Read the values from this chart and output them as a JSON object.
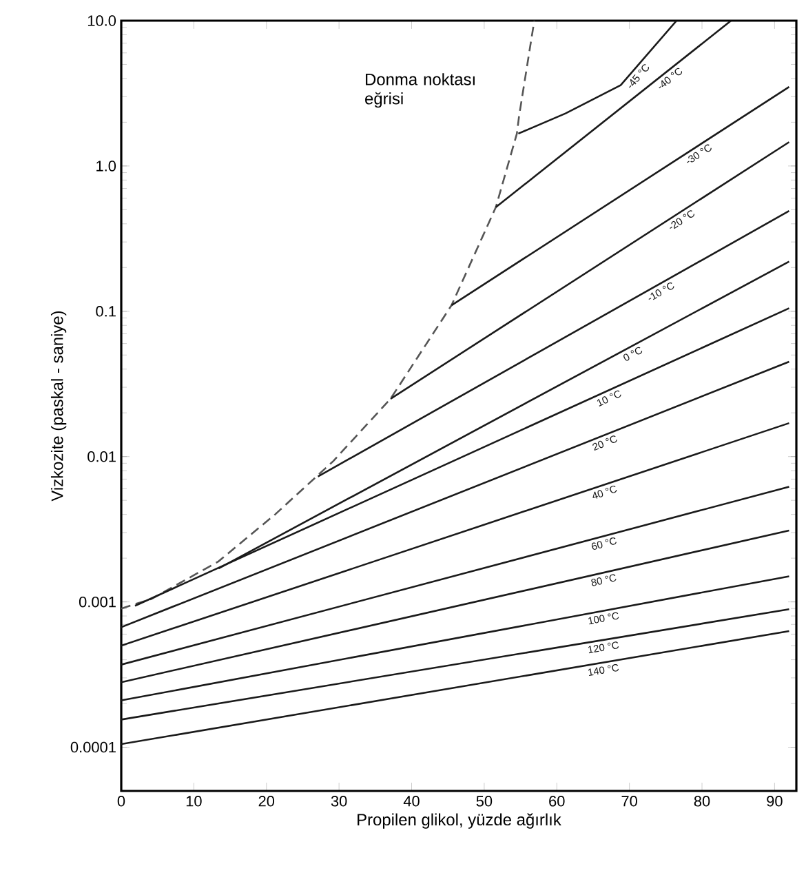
{
  "chart_data": {
    "type": "line",
    "xlabel": "Propilen glikol, yüzde ağırlık",
    "ylabel": "Vizkozite (paskal - saniye)",
    "xlim": [
      0,
      93
    ],
    "xticks": [
      0,
      10,
      20,
      30,
      40,
      50,
      60,
      70,
      80,
      90
    ],
    "ylim": [
      5e-05,
      10
    ],
    "yticks": [
      0.0001,
      0.001,
      0.01,
      0.1,
      {
        "value": 1,
        "label": "1.0"
      },
      {
        "value": 10,
        "label": "10.0"
      }
    ],
    "log": "y",
    "marker": "none",
    "annotations": [
      {
        "text": "Donma noktası eğrisi",
        "x": 54.8,
        "y": 2.2
      }
    ],
    "series": [
      {
        "color": "#555555",
        "line_style": "dashed",
        "x": [
          0,
          4.2,
          13.4,
          21.2,
          29.2,
          37.1,
          45.5,
          51.6,
          54.5,
          54.8,
          56.9
        ],
        "values": [
          0.0009,
          0.00105,
          0.0019,
          0.004,
          0.0093,
          0.025,
          0.11,
          0.52,
          1.67,
          2.2,
          10
        ]
      },
      {
        "name": "-45 °C",
        "color": "#1a1a1a",
        "x": [
          54.7,
          61.2,
          68.8,
          76.5
        ],
        "values": [
          1.67,
          2.3,
          3.6,
          10
        ]
      },
      {
        "name": "-40 °C",
        "color": "#1a1a1a",
        "x": [
          51.6,
          84
        ],
        "values": [
          0.52,
          10
        ]
      },
      {
        "name": "-30 °C",
        "color": "#1a1a1a",
        "x": [
          45.5,
          92
        ],
        "values": [
          0.11,
          3.5
        ]
      },
      {
        "name": "-20 °C",
        "color": "#1a1a1a",
        "x": [
          37.1,
          92
        ],
        "values": [
          0.025,
          1.46
        ]
      },
      {
        "name": "-10 °C",
        "color": "#1a1a1a",
        "x": [
          27.1,
          92
        ],
        "values": [
          0.0073,
          0.49
        ]
      },
      {
        "name": "0 °C",
        "color": "#1a1a1a",
        "x": [
          13.4,
          92
        ],
        "values": [
          0.0017,
          0.22
        ]
      },
      {
        "name": "10 °C",
        "color": "#1a1a1a",
        "x": [
          1.9,
          92
        ],
        "values": [
          0.00094,
          0.105
        ]
      },
      {
        "name": "20 °C",
        "color": "#1a1a1a",
        "x": [
          0,
          92
        ],
        "values": [
          0.00067,
          0.045
        ]
      },
      {
        "name": "40 °C",
        "color": "#1a1a1a",
        "x": [
          0,
          92
        ],
        "values": [
          0.0005,
          0.017
        ]
      },
      {
        "name": "60 °C",
        "color": "#1a1a1a",
        "x": [
          0,
          92
        ],
        "values": [
          0.00037,
          0.0062
        ]
      },
      {
        "name": "80 °C",
        "color": "#1a1a1a",
        "x": [
          0,
          92
        ],
        "values": [
          0.00028,
          0.0031
        ]
      },
      {
        "name": "100 °C",
        "color": "#1a1a1a",
        "x": [
          0,
          92
        ],
        "values": [
          0.00021,
          0.0015
        ]
      },
      {
        "name": "120 °C",
        "color": "#1a1a1a",
        "x": [
          0,
          92
        ],
        "values": [
          0.000155,
          0.00089
        ]
      },
      {
        "name": "140 °C",
        "color": "#1a1a1a",
        "x": [
          0,
          92
        ],
        "values": [
          0.000105,
          0.00063
        ]
      }
    ]
  }
}
